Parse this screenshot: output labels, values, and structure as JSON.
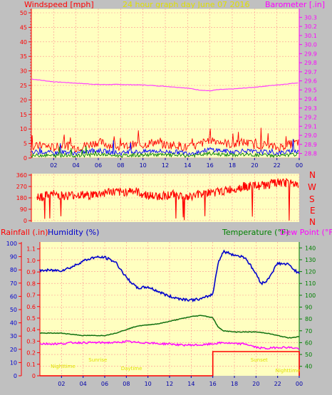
{
  "header": {
    "wind_label": "Windspeed [mph]",
    "title": "24 hour graph day   June 07 2016",
    "baro_label": "Barometer [.in]"
  },
  "bottom_header": {
    "rain_label": "Rainfall (.in)",
    "humidity_label": "Humidity (%)",
    "temp_label": "Temperature (°F)",
    "dew_label": "Dew Point (°F)"
  },
  "compass": [
    "N",
    "W",
    "S",
    "E",
    "N"
  ],
  "colors": {
    "background": "#c0c0c0",
    "plot_bg": "#ffffc0",
    "grid": "#ff9090",
    "wind": "#ff0000",
    "baro": "#ff40ff",
    "humidity": "#0000cc",
    "temp": "#107010",
    "dew": "#ff00ff",
    "rain": "#ff0000",
    "axis_wind": "#ff0000",
    "axis_baro": "#ff00ff",
    "axis_temp": "#008000",
    "axis_blue": "#0000cc",
    "sun_label": "#e0e000"
  },
  "sun_labels": [
    "Nighttime",
    "Sunrise",
    "Daytime",
    "Sunset",
    "Nighttime"
  ],
  "chart_data": [
    {
      "type": "line",
      "title": "24 hour graph day   June 07 2016",
      "x_ticks": [
        "02",
        "04",
        "06",
        "08",
        "10",
        "12",
        "14",
        "16",
        "18",
        "20",
        "22",
        "00"
      ],
      "x_range": [
        0,
        24
      ],
      "left_axis": {
        "label": "Windspeed [mph]",
        "ticks": [
          0,
          5,
          10,
          15,
          20,
          25,
          30,
          35,
          40,
          45,
          50
        ],
        "range": [
          0,
          50
        ]
      },
      "right_axis": {
        "label": "Barometer [.in]",
        "ticks": [
          28.8,
          28.9,
          29,
          29.1,
          29.2,
          29.3,
          29.4,
          29.5,
          29.6,
          29.7,
          29.8,
          29.9,
          30,
          30.1,
          30.2,
          30.3
        ],
        "range": [
          28.75,
          30.35
        ]
      },
      "series": [
        {
          "name": "Barometer [.in]",
          "axis": "right",
          "x": [
            0,
            2,
            4,
            6,
            8,
            10,
            12,
            14,
            15,
            16,
            16.5,
            17,
            18,
            20,
            22,
            24
          ],
          "values": [
            29.62,
            29.59,
            29.575,
            29.56,
            29.56,
            29.555,
            29.54,
            29.52,
            29.5,
            29.49,
            29.5,
            29.505,
            29.51,
            29.53,
            29.555,
            29.58
          ]
        },
        {
          "name": "Windspeed [mph]",
          "axis": "left",
          "x": [
            0,
            1,
            2,
            3,
            4,
            5,
            6,
            7,
            8,
            9,
            10,
            11,
            12,
            13,
            14,
            15,
            16,
            17,
            18,
            19,
            20,
            21,
            22,
            23,
            24
          ],
          "values": [
            3,
            4,
            3,
            4,
            3,
            4,
            5,
            4,
            3,
            4,
            4,
            5,
            4,
            4,
            3,
            4,
            6,
            5,
            4,
            5,
            4,
            4,
            3,
            4,
            5
          ]
        }
      ]
    },
    {
      "type": "line",
      "x_ticks": [
        "02",
        "04",
        "06",
        "08",
        "10",
        "12",
        "14",
        "16",
        "18",
        "20",
        "22",
        "00"
      ],
      "x_range": [
        0,
        24
      ],
      "left_axis": {
        "ticks": [
          0,
          90,
          180,
          270,
          360
        ],
        "range": [
          0,
          360
        ]
      },
      "right_axis": {
        "ticks": [
          "N",
          "W",
          "S",
          "E",
          "N"
        ]
      },
      "series": [
        {
          "name": "Wind Direction",
          "x": [
            0,
            1,
            2,
            3,
            4,
            5,
            6,
            7,
            8,
            9,
            10,
            11,
            12,
            13,
            14,
            15,
            16,
            17,
            18,
            19,
            20,
            21,
            22,
            23,
            24
          ],
          "values": [
            200,
            190,
            210,
            195,
            205,
            200,
            210,
            230,
            220,
            240,
            210,
            190,
            200,
            210,
            180,
            210,
            220,
            230,
            250,
            270,
            275,
            280,
            300,
            295,
            290
          ]
        }
      ]
    },
    {
      "type": "line",
      "x_ticks": [
        "02",
        "04",
        "06",
        "08",
        "10",
        "12",
        "14",
        "16",
        "18",
        "20",
        "22",
        "00"
      ],
      "x_range": [
        0,
        24
      ],
      "rain_axis": {
        "label": "Rainfall (.in)",
        "ticks": [
          0,
          10,
          20,
          30,
          40,
          50,
          60,
          70,
          80,
          90,
          100
        ]
      },
      "humidity_axis": {
        "label": "Humidity (%)",
        "ticks": [
          0,
          0.1,
          0.2,
          0.3,
          0.4,
          0.5,
          0.6,
          0.7,
          0.8,
          0.9,
          1,
          1.1
        ],
        "range": [
          0,
          1.16
        ]
      },
      "temp_axis": {
        "label": "Temperature (°F)",
        "ticks": [
          40,
          50,
          60,
          70,
          80,
          90,
          100,
          110,
          120,
          130,
          140
        ],
        "range": [
          32,
          145
        ]
      },
      "series": [
        {
          "name": "Humidity (%)",
          "axis": "temp",
          "x": [
            0,
            1,
            2,
            3,
            4,
            5,
            6,
            7,
            8,
            9,
            10,
            11,
            12,
            13,
            14,
            15,
            16,
            16.5,
            17,
            18,
            19,
            20,
            20.5,
            21,
            22,
            23,
            24
          ],
          "values": [
            121,
            121,
            121,
            124,
            129,
            132,
            132,
            128,
            115,
            106,
            107,
            103,
            99,
            97,
            96,
            97,
            101,
            128,
            137,
            134,
            132,
            118,
            110,
            112,
            127,
            126,
            118
          ]
        },
        {
          "name": "Temperature (°F)",
          "axis": "temp",
          "x": [
            0,
            1,
            2,
            3,
            4,
            5,
            6,
            7,
            8,
            9,
            10,
            11,
            12,
            13,
            14,
            15,
            16,
            16.5,
            17,
            18,
            19,
            20,
            21,
            22,
            23,
            24
          ],
          "values": [
            68,
            68,
            68,
            67,
            66,
            66,
            66,
            68,
            71,
            74,
            75,
            76,
            78,
            80,
            82,
            83,
            81,
            73,
            70,
            69,
            69,
            69,
            68,
            66,
            64,
            65
          ]
        },
        {
          "name": "Dew Point (°F)",
          "axis": "temp",
          "x": [
            0,
            1,
            2,
            3,
            4,
            5,
            6,
            7,
            8,
            9,
            10,
            11,
            12,
            13,
            14,
            15,
            16,
            17,
            18,
            19,
            20,
            21,
            22,
            23,
            24
          ],
          "values": [
            59,
            59,
            59,
            60,
            60,
            60,
            60,
            60,
            61,
            60,
            60,
            59,
            59,
            58,
            58,
            58,
            59,
            60,
            59,
            59,
            56,
            55,
            56,
            56,
            55
          ]
        },
        {
          "name": "Rainfall (.in)",
          "axis": "rain",
          "x": [
            0,
            16,
            16,
            20,
            20,
            24,
            24
          ],
          "values": [
            0,
            0,
            0.21,
            0.21,
            0.21,
            0.21,
            0
          ]
        }
      ]
    }
  ]
}
